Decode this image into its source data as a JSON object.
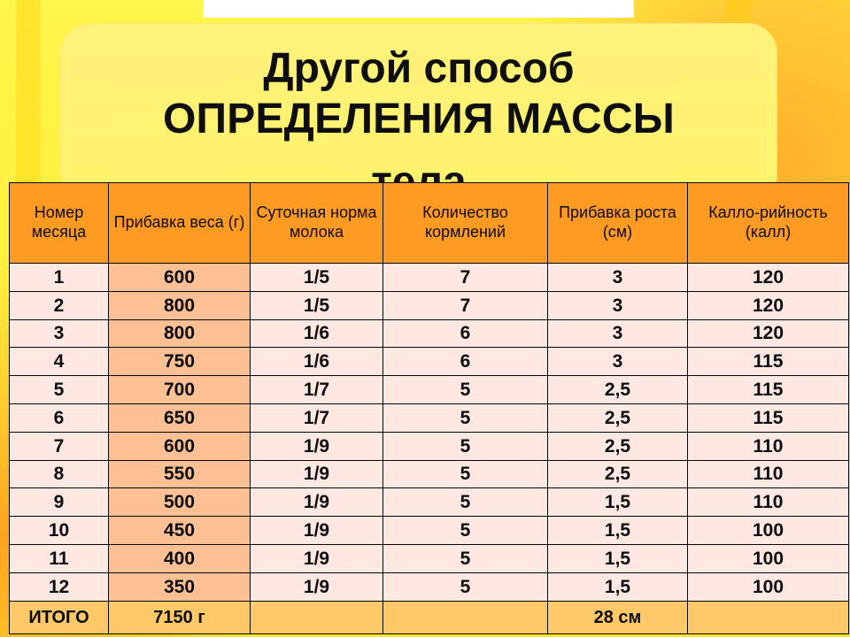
{
  "slide": {
    "title_line_1": "Другой способ",
    "title_line_2": "ОПРЕДЕЛЕНИЯ МАССЫ",
    "title_line_3": "тела"
  },
  "table": {
    "headers": [
      "Номер месяца",
      "Прибавка веса (г)",
      "Суточная норма молока",
      "Количество кормлений",
      "Прибавка роста (см)",
      "Калло-рийность (калл)"
    ],
    "rows": [
      [
        "1",
        "600",
        "1/5",
        "7",
        "3",
        "120"
      ],
      [
        "2",
        "800",
        "1/5",
        "7",
        "3",
        "120"
      ],
      [
        "3",
        "800",
        "1/6",
        "6",
        "3",
        "120"
      ],
      [
        "4",
        "750",
        "1/6",
        "6",
        "3",
        "115"
      ],
      [
        "5",
        "700",
        "1/7",
        "5",
        "2,5",
        "115"
      ],
      [
        "6",
        "650",
        "1/7",
        "5",
        "2,5",
        "115"
      ],
      [
        "7",
        "600",
        "1/9",
        "5",
        "2,5",
        "110"
      ],
      [
        "8",
        "550",
        "1/9",
        "5",
        "2,5",
        "110"
      ],
      [
        "9",
        "500",
        "1/9",
        "5",
        "1,5",
        "110"
      ],
      [
        "10",
        "450",
        "1/9",
        "5",
        "1,5",
        "100"
      ],
      [
        "11",
        "400",
        "1/9",
        "5",
        "1,5",
        "100"
      ],
      [
        "12",
        "350",
        "1/9",
        "5",
        "1,5",
        "100"
      ]
    ],
    "total": [
      "ИТОГО",
      "7150 г",
      "",
      "",
      "28 см",
      ""
    ]
  },
  "colors": {
    "background": "#fff23a",
    "title_box": "#fff36c",
    "header_fill": "#ff9b22",
    "body_fill": "#ffe8e1",
    "weight_column_fill": "#ffc193",
    "total_fill": "#ffc967"
  }
}
